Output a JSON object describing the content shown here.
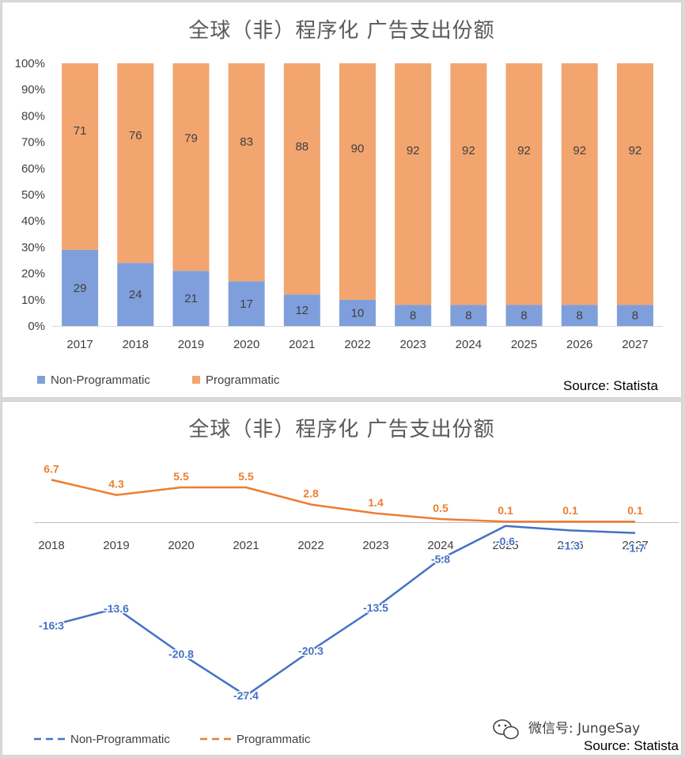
{
  "colors": {
    "non_programmatic_bar": "#7f9fdc",
    "programmatic_bar": "#f2a56f",
    "non_programmatic_line": "#4472c4",
    "programmatic_line": "#ed7d31"
  },
  "watermark": "微信号: JungeSay",
  "watermark_icon": "wechat-icon",
  "chart_data": [
    {
      "type": "bar",
      "stacked": true,
      "title": "全球（非）程序化 广告支出份额",
      "source": "Source: Statista",
      "categories": [
        "2017",
        "2018",
        "2019",
        "2020",
        "2021",
        "2022",
        "2023",
        "2024",
        "2025",
        "2026",
        "2027"
      ],
      "series": [
        {
          "name": "Non-Programmatic",
          "values": [
            29,
            24,
            21,
            17,
            12,
            10,
            8,
            8,
            8,
            8,
            8
          ]
        },
        {
          "name": "Programmatic",
          "values": [
            71,
            76,
            79,
            83,
            88,
            90,
            92,
            92,
            92,
            92,
            92
          ]
        }
      ],
      "yticks": [
        "0%",
        "10%",
        "20%",
        "30%",
        "40%",
        "50%",
        "60%",
        "70%",
        "80%",
        "90%",
        "100%"
      ],
      "ylim": [
        0,
        100
      ],
      "legend": "bottom-left"
    },
    {
      "type": "line",
      "title": "全球（非）程序化 广告支出份额",
      "source": "Source: Statista",
      "categories": [
        "2018",
        "2019",
        "2020",
        "2021",
        "2022",
        "2023",
        "2024",
        "2025",
        "2026",
        "2027"
      ],
      "series": [
        {
          "name": "Non-Programmatic",
          "values": [
            -16.3,
            -13.6,
            -20.8,
            -27.4,
            -20.3,
            -13.5,
            -5.8,
            -0.6,
            -1.3,
            -1.7
          ]
        },
        {
          "name": "Programmatic",
          "values": [
            6.7,
            4.3,
            5.5,
            5.5,
            2.8,
            1.4,
            0.5,
            0.1,
            0.1,
            0.1
          ]
        }
      ],
      "legend": "bottom-left"
    }
  ]
}
